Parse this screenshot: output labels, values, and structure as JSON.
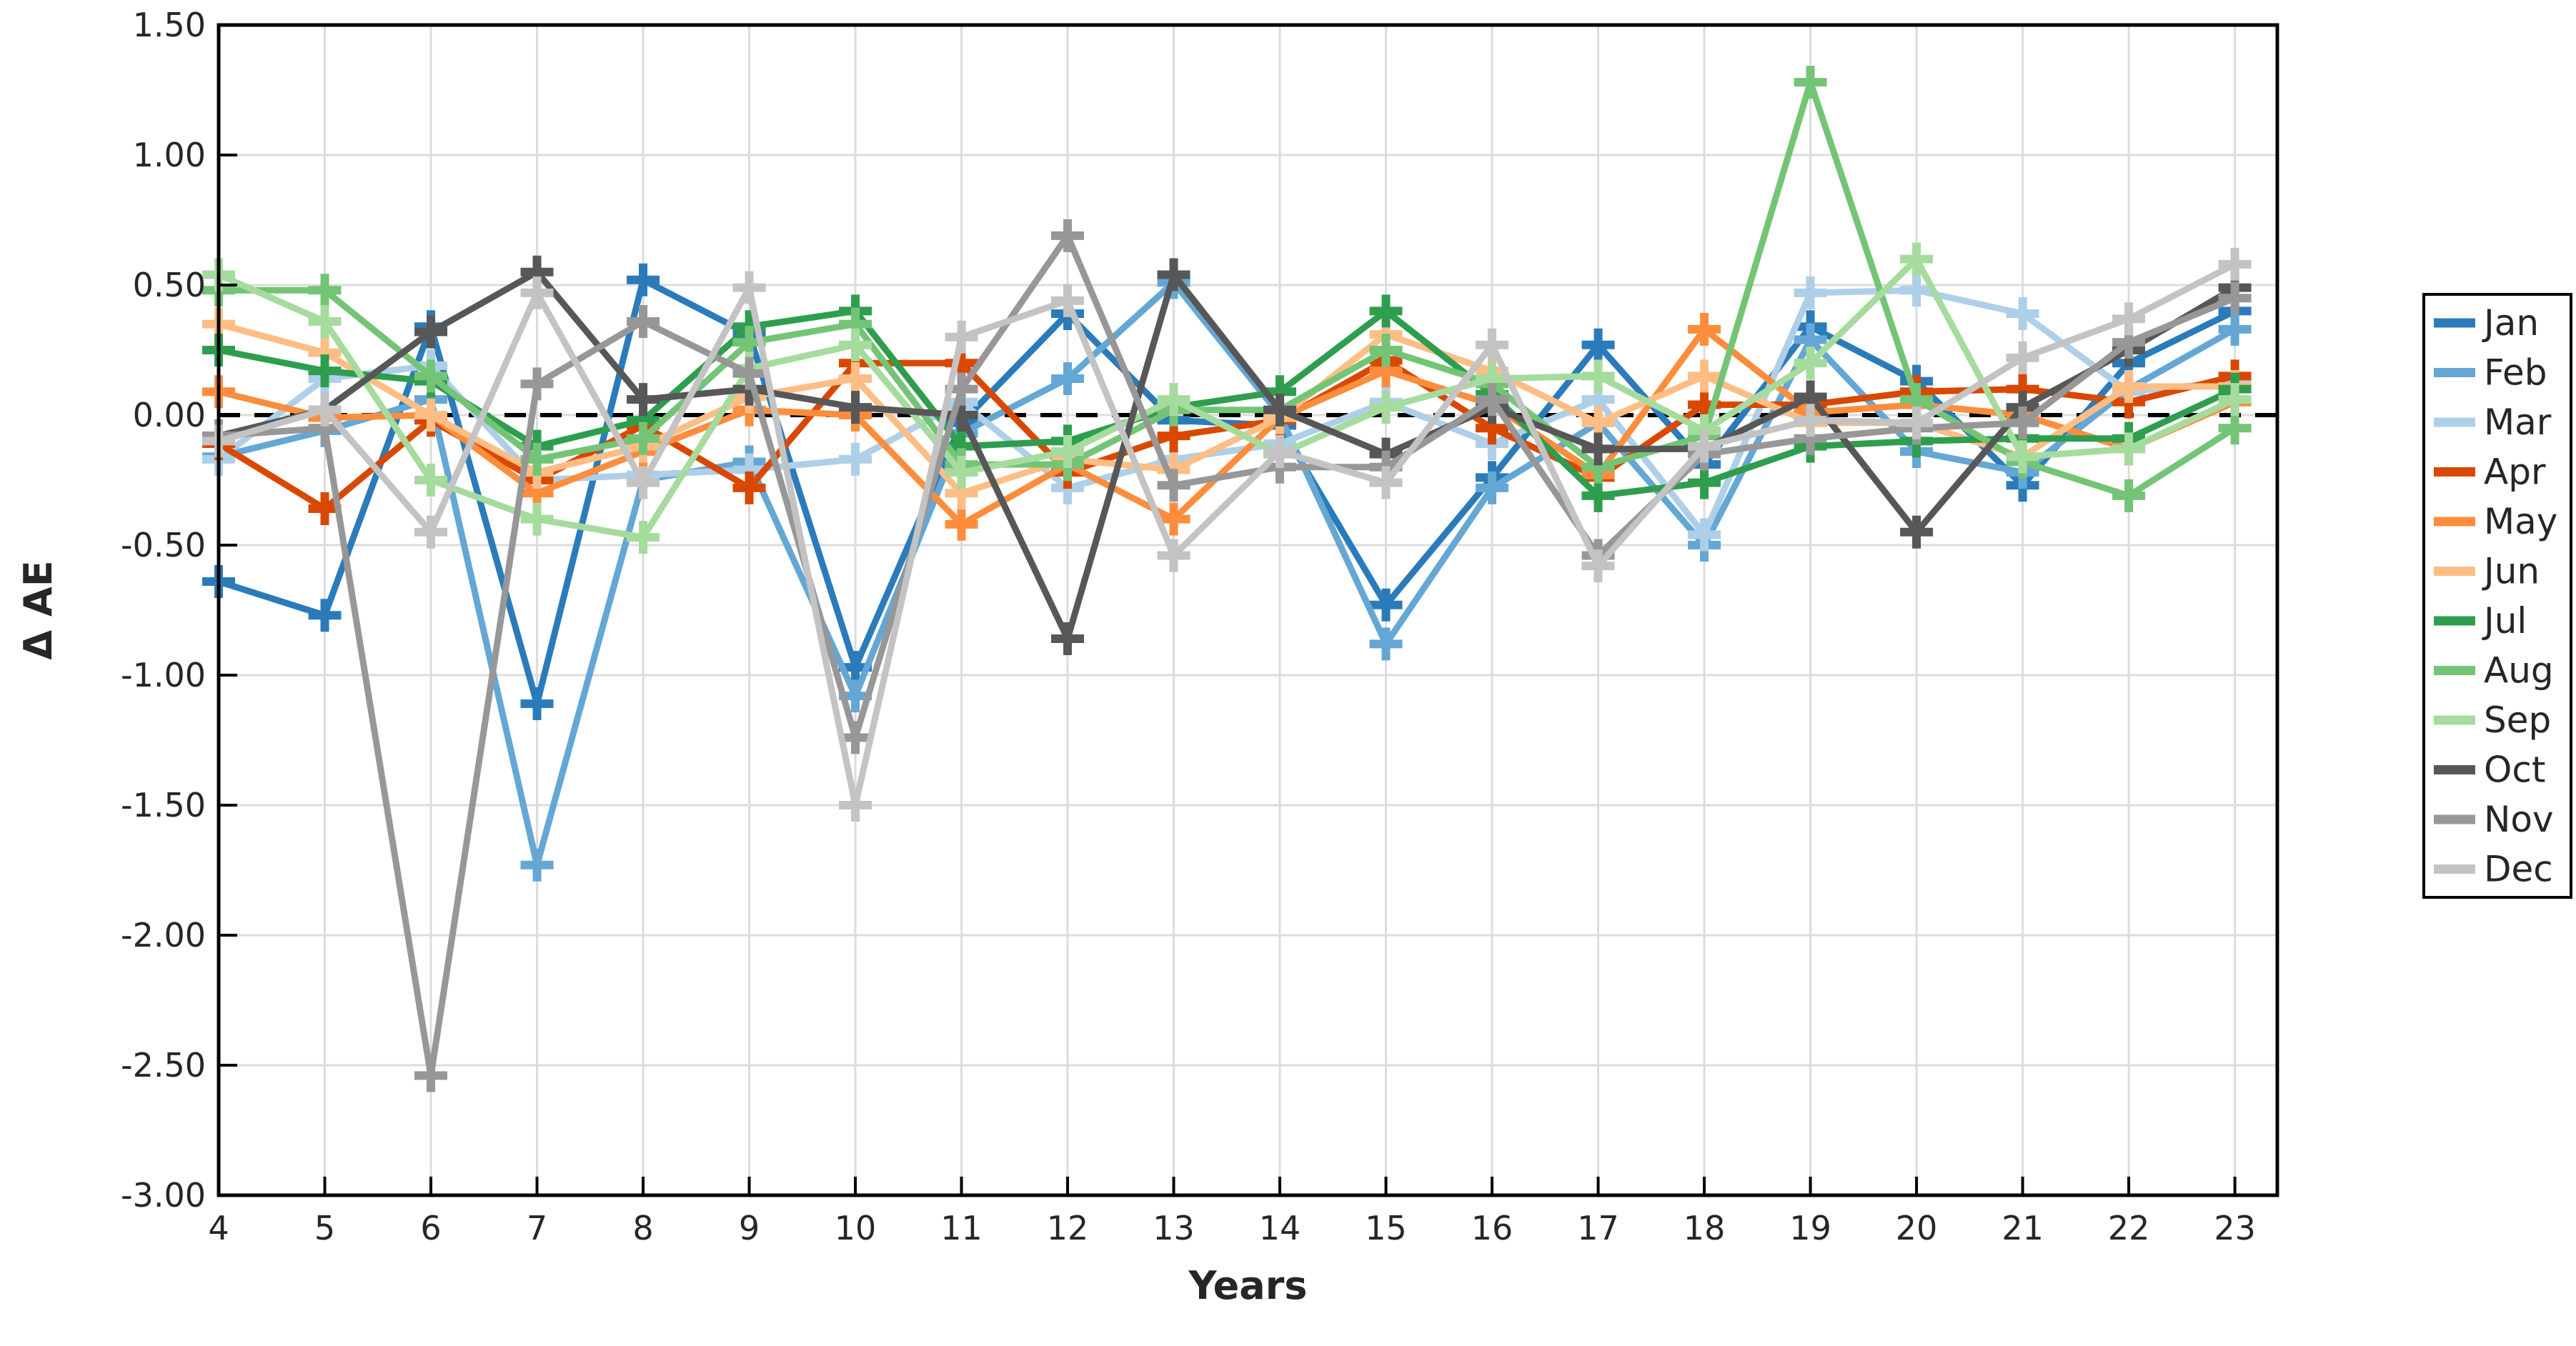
{
  "chart_data": {
    "type": "line",
    "title": "",
    "xlabel": "Years",
    "ylabel": "Δ AE",
    "x": [
      4,
      5,
      6,
      7,
      8,
      9,
      10,
      11,
      12,
      13,
      14,
      15,
      16,
      17,
      18,
      19,
      20,
      21,
      22,
      23
    ],
    "x_tick_labels": [
      "4",
      "5",
      "6",
      "7",
      "8",
      "9",
      "10",
      "11",
      "12",
      "13",
      "14",
      "15",
      "16",
      "17",
      "18",
      "19",
      "20",
      "21",
      "22",
      "23"
    ],
    "xlim": [
      4,
      23.4
    ],
    "ylim": [
      -3.0,
      1.5
    ],
    "y_tick_step": 0.5,
    "y_tick_labels": [
      "1.50",
      "1.00",
      "0.50",
      "0.00",
      "-0.50",
      "-1.00",
      "-1.50",
      "-2.00",
      "-2.50",
      "-3.00"
    ],
    "grid": true,
    "zero_line_dashed_black": true,
    "legend_position": "right-outside",
    "marker": "plus",
    "series": [
      {
        "name": "Jan",
        "color": "#2B7BBA",
        "values": [
          -0.64,
          -0.77,
          0.34,
          -1.11,
          0.52,
          0.31,
          -0.97,
          -0.03,
          0.39,
          -0.02,
          -0.04,
          -0.73,
          -0.24,
          0.27,
          -0.19,
          0.34,
          0.13,
          -0.27,
          0.2,
          0.4
        ]
      },
      {
        "name": "Feb",
        "color": "#64A7D4",
        "values": [
          -0.16,
          -0.06,
          0.06,
          -1.73,
          -0.25,
          -0.18,
          -1.08,
          -0.07,
          0.14,
          0.51,
          0.0,
          -0.88,
          -0.28,
          -0.03,
          -0.5,
          0.29,
          -0.14,
          -0.22,
          0.1,
          0.33
        ]
      },
      {
        "name": "Mar",
        "color": "#AECFE8",
        "values": [
          -0.17,
          0.14,
          0.19,
          -0.25,
          -0.23,
          -0.21,
          -0.17,
          0.05,
          -0.28,
          -0.17,
          -0.11,
          0.05,
          -0.11,
          0.06,
          -0.46,
          0.47,
          0.48,
          0.39,
          0.09,
          0.13
        ]
      },
      {
        "name": "Apr",
        "color": "#D94801",
        "values": [
          -0.11,
          -0.36,
          -0.02,
          -0.25,
          -0.04,
          -0.28,
          0.2,
          0.2,
          -0.22,
          -0.08,
          -0.02,
          0.21,
          -0.05,
          -0.24,
          0.04,
          0.04,
          0.09,
          0.1,
          0.05,
          0.15
        ]
      },
      {
        "name": "May",
        "color": "#FD8D3C",
        "values": [
          0.09,
          -0.01,
          0.0,
          -0.3,
          -0.14,
          0.02,
          0.0,
          -0.42,
          -0.19,
          -0.4,
          -0.01,
          0.17,
          0.04,
          -0.23,
          0.33,
          0.01,
          0.04,
          0.0,
          -0.13,
          0.05
        ]
      },
      {
        "name": "Jun",
        "color": "#FDBE85",
        "values": [
          0.35,
          0.24,
          0.0,
          -0.22,
          -0.12,
          0.07,
          0.14,
          -0.3,
          -0.17,
          -0.21,
          -0.01,
          0.31,
          0.17,
          -0.03,
          0.15,
          -0.03,
          -0.03,
          -0.16,
          0.11,
          0.11
        ]
      },
      {
        "name": "Jul",
        "color": "#2E9E4E",
        "values": [
          0.25,
          0.17,
          0.13,
          -0.12,
          -0.02,
          0.34,
          0.4,
          -0.12,
          -0.1,
          0.03,
          0.09,
          0.4,
          0.08,
          -0.31,
          -0.26,
          -0.12,
          -0.1,
          -0.09,
          -0.09,
          0.1
        ]
      },
      {
        "name": "Aug",
        "color": "#74C476",
        "values": [
          0.48,
          0.48,
          0.15,
          -0.17,
          -0.09,
          0.28,
          0.35,
          -0.19,
          -0.19,
          0.02,
          0.02,
          0.25,
          0.12,
          -0.2,
          -0.08,
          1.28,
          0.06,
          -0.18,
          -0.31,
          -0.05
        ]
      },
      {
        "name": "Sep",
        "color": "#A6DB9E",
        "values": [
          0.54,
          0.36,
          -0.25,
          -0.4,
          -0.47,
          0.18,
          0.27,
          -0.22,
          -0.14,
          0.06,
          -0.15,
          0.03,
          0.14,
          0.15,
          -0.06,
          0.2,
          0.6,
          -0.16,
          -0.13,
          0.06
        ]
      },
      {
        "name": "Oct",
        "color": "#575757",
        "values": [
          -0.08,
          0.02,
          0.32,
          0.55,
          0.06,
          0.1,
          0.03,
          0.0,
          -0.86,
          0.54,
          0.02,
          -0.15,
          0.03,
          -0.13,
          -0.13,
          0.07,
          -0.45,
          0.03,
          0.25,
          0.49
        ]
      },
      {
        "name": "Nov",
        "color": "#979797",
        "values": [
          -0.08,
          -0.05,
          -2.54,
          0.12,
          0.36,
          0.16,
          -1.24,
          0.1,
          0.69,
          -0.27,
          -0.2,
          -0.2,
          0.06,
          -0.54,
          -0.15,
          -0.09,
          -0.05,
          -0.03,
          0.28,
          0.45
        ]
      },
      {
        "name": "Dec",
        "color": "#C3C3C3",
        "values": [
          -0.1,
          0.02,
          -0.45,
          0.47,
          -0.26,
          0.49,
          -1.5,
          0.3,
          0.44,
          -0.54,
          -0.14,
          -0.26,
          0.27,
          -0.58,
          -0.12,
          -0.02,
          -0.03,
          0.22,
          0.37,
          0.58
        ]
      }
    ],
    "colors": {
      "grid": "#DCDCDC",
      "axis": "#000000",
      "zero_line": "#000000",
      "background": "#FFFFFF",
      "legend_border": "#000000"
    }
  }
}
